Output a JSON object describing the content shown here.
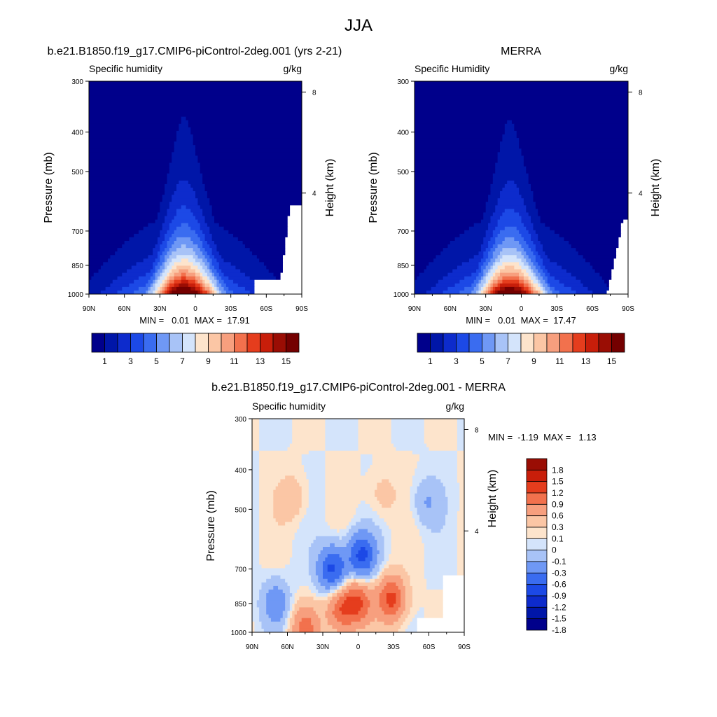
{
  "figure_title": "JJA",
  "palettes": {
    "abs": [
      "#00008b",
      "#0016a8",
      "#0d2bcc",
      "#1c49e6",
      "#3a6cf0",
      "#6f98f5",
      "#a8c3f7",
      "#d4e4fb",
      "#fde4cc",
      "#fbc6a5",
      "#f79f7e",
      "#f2714d",
      "#e53d1d",
      "#c81e0a",
      "#9a0d04",
      "#740000"
    ],
    "diff": [
      "#00008b",
      "#0016a8",
      "#0d2bcc",
      "#1c49e6",
      "#3a6cf0",
      "#6f98f5",
      "#a8c3f7",
      "#d4e4fb",
      "#fde4cc",
      "#fbc6a5",
      "#f79f7e",
      "#f2714d",
      "#e53d1d",
      "#c81e0a",
      "#9a0d04"
    ]
  },
  "chart_data": [
    {
      "type": "heatmap",
      "title": "b.e21.B1850.f19_g17.CMIP6-piControl-2deg.001 (yrs 2-21)",
      "left_label": "Specific humidity",
      "right_label": "g/kg",
      "ylabel": "Pressure (mb)",
      "ylabel_right": "Height (km)",
      "x_ticks": [
        "90N",
        "60N",
        "30N",
        "0",
        "30S",
        "60S",
        "90S"
      ],
      "x_values": [
        90,
        60,
        30,
        0,
        -30,
        -60,
        -90
      ],
      "y_ticks": [
        "300",
        "400",
        "500",
        "700",
        "850",
        "1000"
      ],
      "y_values": [
        300,
        400,
        500,
        700,
        850,
        1000
      ],
      "height_ticks": [
        "8",
        "4"
      ],
      "height_values": [
        8,
        4
      ],
      "levels": [
        1,
        2,
        3,
        4,
        5,
        6,
        7,
        8,
        9,
        10,
        11,
        12,
        13,
        14,
        15
      ],
      "colorbar_labels": [
        "1",
        "3",
        "5",
        "7",
        "9",
        "11",
        "13",
        "15"
      ],
      "stats_text": "MIN =   0.01  MAX =  17.91",
      "min": 0.01,
      "max": 17.91,
      "peak_lat": 10,
      "peak_value": 17.91,
      "missing_south_of": -50,
      "missing_below_p": 925
    },
    {
      "type": "heatmap",
      "title": "MERRA",
      "left_label": "Specific Humidity",
      "right_label": "g/kg",
      "ylabel": "Pressure (mb)",
      "ylabel_right": "Height (km)",
      "x_ticks": [
        "90N",
        "60N",
        "30N",
        "0",
        "30S",
        "60S",
        "90S"
      ],
      "x_values": [
        90,
        60,
        30,
        0,
        -30,
        -60,
        -90
      ],
      "y_ticks": [
        "300",
        "400",
        "500",
        "700",
        "850",
        "1000"
      ],
      "y_values": [
        300,
        400,
        500,
        700,
        850,
        1000
      ],
      "height_ticks": [
        "8",
        "4"
      ],
      "height_values": [
        8,
        4
      ],
      "levels": [
        1,
        2,
        3,
        4,
        5,
        6,
        7,
        8,
        9,
        10,
        11,
        12,
        13,
        14,
        15
      ],
      "colorbar_labels": [
        "1",
        "3",
        "5",
        "7",
        "9",
        "11",
        "13",
        "15"
      ],
      "stats_text": "MIN =   0.01  MAX =  17.47",
      "min": 0.01,
      "max": 17.47,
      "peak_lat": 10,
      "peak_value": 17.47
    },
    {
      "type": "heatmap",
      "title": "b.e21.B1850.f19_g17.CMIP6-piControl-2deg.001 - MERRA",
      "left_label": "Specific humidity",
      "right_label": "g/kg",
      "ylabel": "Pressure (mb)",
      "ylabel_right": "Height (km)",
      "x_ticks": [
        "90N",
        "60N",
        "30N",
        "0",
        "30S",
        "60S",
        "90S"
      ],
      "x_values": [
        90,
        60,
        30,
        0,
        -30,
        -60,
        -90
      ],
      "y_ticks": [
        "300",
        "400",
        "500",
        "700",
        "850",
        "1000"
      ],
      "y_values": [
        300,
        400,
        500,
        700,
        850,
        1000
      ],
      "height_ticks": [
        "8",
        "4"
      ],
      "height_values": [
        8,
        4
      ],
      "levels": [
        -1.8,
        -1.5,
        -1.2,
        -0.9,
        -0.6,
        -0.3,
        -0.1,
        0,
        0.1,
        0.3,
        0.6,
        0.9,
        1.2,
        1.5,
        1.8
      ],
      "colorbar_labels": [
        "1.8",
        "1.5",
        "1.2",
        "0.9",
        "0.6",
        "0.3",
        "0.1",
        "0",
        "-0.1",
        "-0.3",
        "-0.6",
        "-0.9",
        "-1.2",
        "-1.5",
        "-1.8"
      ],
      "stats_text": "MIN =  -1.19  MAX =   1.13",
      "min": -1.19,
      "max": 1.13,
      "features": [
        {
          "lat": 22,
          "p": 700,
          "value": -1.0
        },
        {
          "lat": -3,
          "p": 650,
          "value": -1.0
        },
        {
          "lat": -28,
          "p": 830,
          "value": 1.0
        },
        {
          "lat": 0,
          "p": 845,
          "value": 0.9
        },
        {
          "lat": 15,
          "p": 880,
          "value": 0.8
        },
        {
          "lat": 45,
          "p": 975,
          "value": 0.7
        },
        {
          "lat": 70,
          "p": 850,
          "value": -0.5
        },
        {
          "lat": -58,
          "p": 480,
          "value": -0.3
        },
        {
          "lat": -20,
          "p": 460,
          "value": 0.2
        },
        {
          "lat": 55,
          "p": 470,
          "value": 0.25
        }
      ]
    }
  ]
}
